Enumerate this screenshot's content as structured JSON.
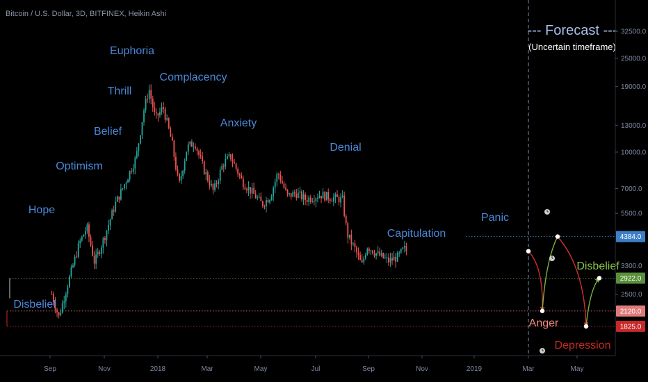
{
  "chart_data": {
    "type": "candlestick",
    "title": "Bitcoin / U.S. Dollar, 3D, BITFINEX, Heikin Ashi",
    "y_scale": "log",
    "ylim": [
      1500,
      33000
    ],
    "price_ticks": [
      "32500.0",
      "25000.0",
      "19000.0",
      "13000.0",
      "10000.0",
      "7000.0",
      "5500.0",
      "3300.0",
      "2500.0"
    ],
    "time_labels": [
      "Sep",
      "Nov",
      "2018",
      "Mar",
      "May",
      "Jul",
      "Sep",
      "Nov",
      "2019",
      "Mar",
      "May"
    ],
    "colors": {
      "up": "#26a69a",
      "down": "#ef5350",
      "phase_label": "#4a88d9",
      "tag_blue": "#3d7fc7",
      "tag_green": "#5a8f3c",
      "tag_pink": "#e07a7a",
      "tag_red": "#c62828",
      "arrow_red": "#d32f2f",
      "arrow_green": "#7cb342"
    },
    "phases": [
      "Disbelief",
      "Hope",
      "Optimism",
      "Belief",
      "Thrill",
      "Euphoria",
      "Complacency",
      "Anxiety",
      "Denial",
      "Capitulation",
      "Panic"
    ],
    "price_path": [
      {
        "date": "2017-07-04",
        "price": 2500
      },
      {
        "date": "2017-07-16",
        "price": 2000
      },
      {
        "date": "2017-08-01",
        "price": 2800
      },
      {
        "date": "2017-08-20",
        "price": 4100
      },
      {
        "date": "2017-09-02",
        "price": 4800
      },
      {
        "date": "2017-09-15",
        "price": 3400
      },
      {
        "date": "2017-10-01",
        "price": 4300
      },
      {
        "date": "2017-10-20",
        "price": 6000
      },
      {
        "date": "2017-11-05",
        "price": 7300
      },
      {
        "date": "2017-11-25",
        "price": 9500
      },
      {
        "date": "2017-12-08",
        "price": 15000
      },
      {
        "date": "2017-12-17",
        "price": 18500
      },
      {
        "date": "2017-12-28",
        "price": 13800
      },
      {
        "date": "2018-01-10",
        "price": 15500
      },
      {
        "date": "2018-01-25",
        "price": 11000
      },
      {
        "date": "2018-02-06",
        "price": 7200
      },
      {
        "date": "2018-02-20",
        "price": 10500
      },
      {
        "date": "2018-03-05",
        "price": 11000
      },
      {
        "date": "2018-03-20",
        "price": 8500
      },
      {
        "date": "2018-04-06",
        "price": 6800
      },
      {
        "date": "2018-04-22",
        "price": 8900
      },
      {
        "date": "2018-05-05",
        "price": 9600
      },
      {
        "date": "2018-05-25",
        "price": 7500
      },
      {
        "date": "2018-06-12",
        "price": 6700
      },
      {
        "date": "2018-06-28",
        "price": 6000
      },
      {
        "date": "2018-07-12",
        "price": 6500
      },
      {
        "date": "2018-07-25",
        "price": 8200
      },
      {
        "date": "2018-08-10",
        "price": 6500
      },
      {
        "date": "2018-08-25",
        "price": 6700
      },
      {
        "date": "2018-09-10",
        "price": 6300
      },
      {
        "date": "2018-10-05",
        "price": 6600
      },
      {
        "date": "2018-10-25",
        "price": 6400
      },
      {
        "date": "2018-11-12",
        "price": 6300
      },
      {
        "date": "2018-11-20",
        "price": 4500
      },
      {
        "date": "2018-12-05",
        "price": 3800
      },
      {
        "date": "2018-12-15",
        "price": 3300
      },
      {
        "date": "2018-12-24",
        "price": 4000
      },
      {
        "date": "2019-01-10",
        "price": 3700
      },
      {
        "date": "2019-01-30",
        "price": 3450
      },
      {
        "date": "2019-02-15",
        "price": 3600
      },
      {
        "date": "2019-02-25",
        "price": 3900
      },
      {
        "date": "2019-03-02",
        "price": 3800
      }
    ],
    "forecast": {
      "title": "--- Forecast ---",
      "subtitle": "(Uncertain timeframe)",
      "waypoints": [
        {
          "label": "",
          "date": "2019-03-02",
          "price": 3800
        },
        {
          "label": "Anger",
          "date": "2019-03-10",
          "price": 2120
        },
        {
          "label": "",
          "date": "2019-03-26",
          "price": 4384
        },
        {
          "label": "Depression",
          "date": "2019-04-25",
          "price": 1825
        },
        {
          "label": "Disbelief",
          "date": "2019-05-05",
          "price": 2922
        }
      ]
    },
    "levels": [
      {
        "value": 4384,
        "label": "4384.0",
        "color": "#3d7fc7"
      },
      {
        "value": 2922,
        "label": "2922.0",
        "color": "#5a8f3c"
      },
      {
        "value": 2120,
        "label": "2120.0",
        "color": "#e07a7a"
      },
      {
        "value": 1825,
        "label": "1825.0",
        "color": "#c62828"
      }
    ]
  }
}
